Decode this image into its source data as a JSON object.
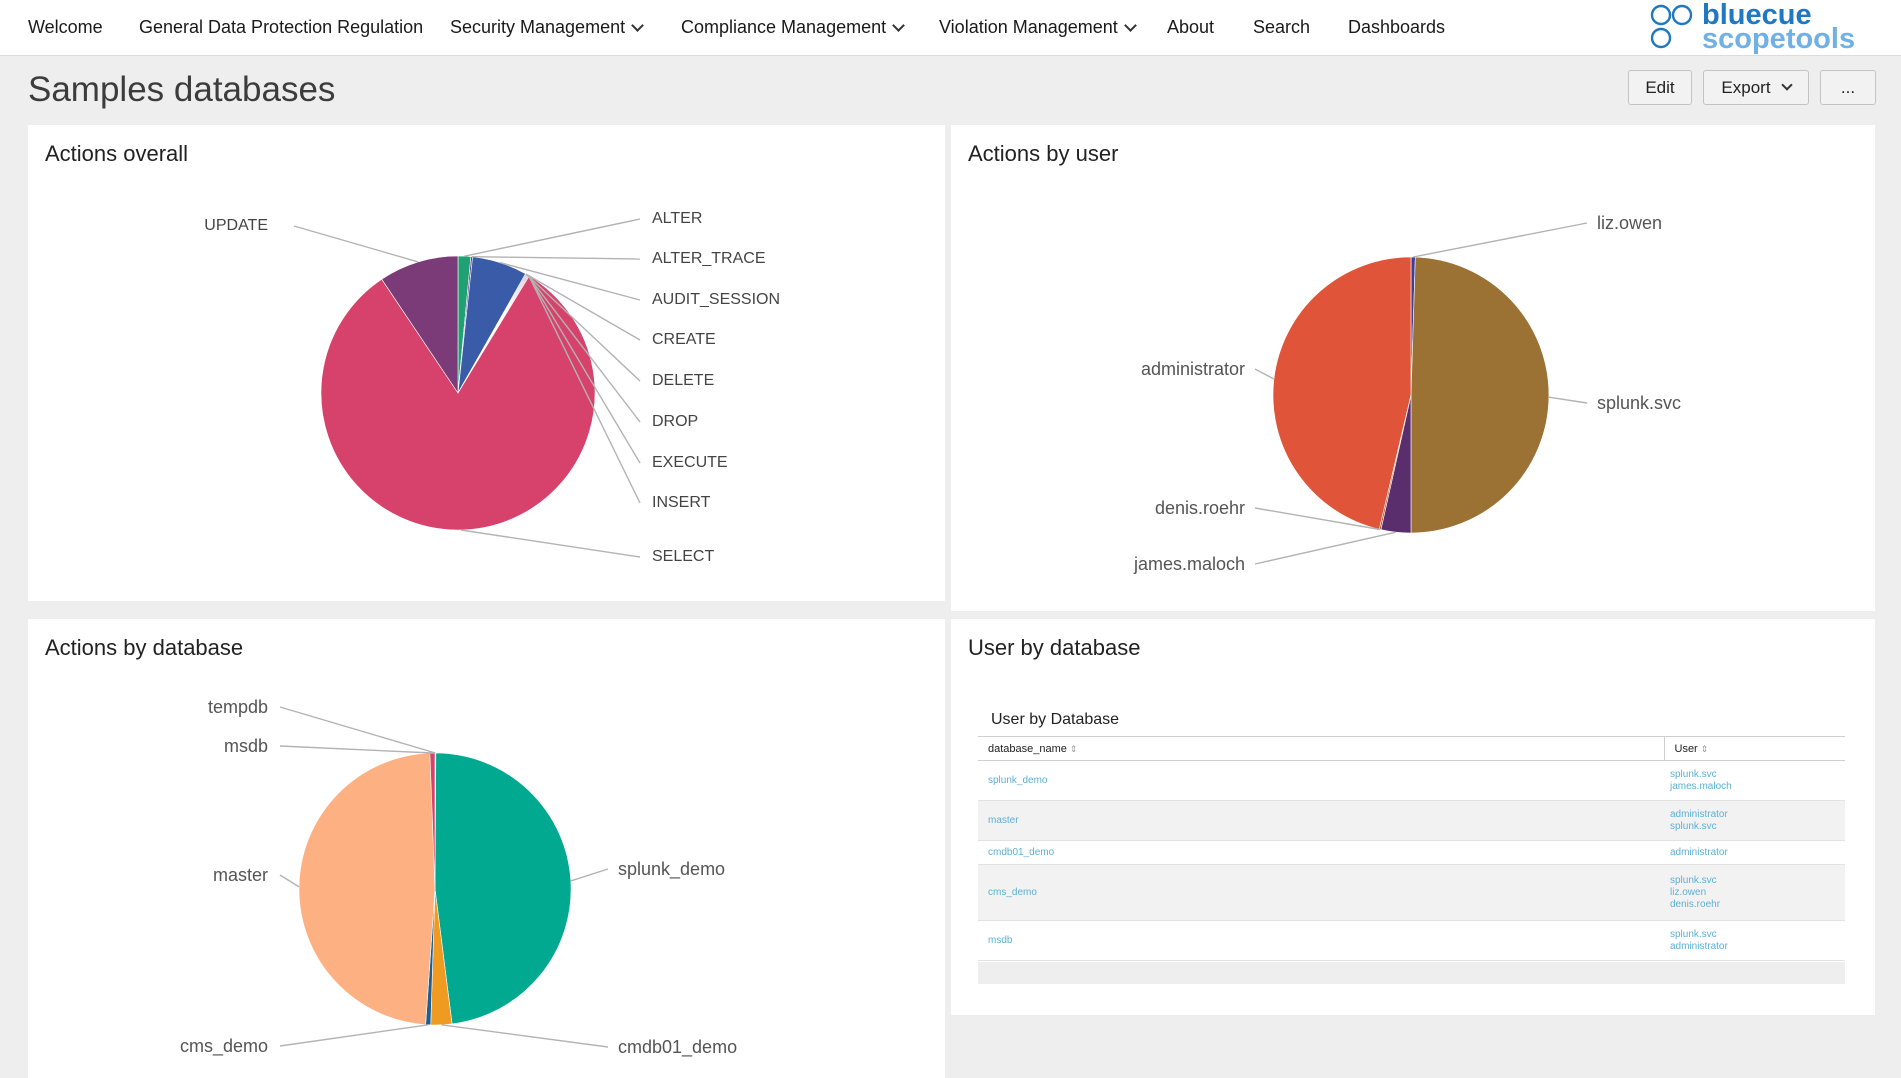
{
  "nav": {
    "items": [
      {
        "label": "Welcome",
        "dropdown": false
      },
      {
        "label": "General Data Protection Regulation",
        "dropdown": false
      },
      {
        "label": "Security Management",
        "dropdown": true
      },
      {
        "label": "Compliance Management",
        "dropdown": true
      },
      {
        "label": "Violation Management",
        "dropdown": true
      },
      {
        "label": "About",
        "dropdown": false
      },
      {
        "label": "Search",
        "dropdown": false
      },
      {
        "label": "Dashboards",
        "dropdown": false
      }
    ],
    "logo": {
      "line1": "bluecue",
      "line2": "scopetools",
      "color": "#1f78c1"
    }
  },
  "page": {
    "title": "Samples databases",
    "buttons": {
      "edit": "Edit",
      "export": "Export",
      "more": "..."
    }
  },
  "panels": {
    "actions_overall": {
      "title": "Actions overall"
    },
    "actions_by_user": {
      "title": "Actions by user"
    },
    "actions_by_database": {
      "title": "Actions by database"
    },
    "user_by_database": {
      "title": "User by database",
      "table_title": "User by Database",
      "columns": [
        "database_name",
        "User"
      ],
      "rows": [
        {
          "database_name": "splunk_demo",
          "users": [
            "splunk.svc",
            "james.maloch"
          ]
        },
        {
          "database_name": "master",
          "users": [
            "administrator",
            "splunk.svc"
          ]
        },
        {
          "database_name": "cmdb01_demo",
          "users": [
            "administrator"
          ]
        },
        {
          "database_name": "cms_demo",
          "users": [
            "splunk.svc",
            "liz.owen",
            "denis.roehr"
          ]
        },
        {
          "database_name": "msdb",
          "users": [
            "splunk.svc",
            "administrator"
          ]
        }
      ]
    }
  },
  "chart_data": [
    {
      "type": "pie",
      "title": "Actions overall",
      "categories": [
        "ALTER",
        "ALTER_TRACE",
        "AUDIT_SESSION",
        "CREATE",
        "DELETE",
        "DROP",
        "EXECUTE",
        "INSERT",
        "SELECT",
        "UPDATE"
      ],
      "values": [
        1.5,
        0.2,
        6.5,
        0.1,
        0.1,
        0.1,
        0.1,
        0.1,
        81.9,
        9.4
      ],
      "colors": [
        "#1fa174",
        "#5b3e8f",
        "#3a5ca8",
        "#5d3b6e",
        "#4c4c78",
        "#6b3a6a",
        "#7a3a63",
        "#8a3a5e",
        "#d6426b",
        "#7b3a78"
      ]
    },
    {
      "type": "pie",
      "title": "Actions by user",
      "categories": [
        "liz.owen",
        "splunk.svc",
        "james.maloch",
        "denis.roehr",
        "administrator"
      ],
      "values": [
        0.5,
        49.5,
        3.5,
        0.2,
        46.3
      ],
      "colors": [
        "#3b3f9a",
        "#9c7134",
        "#5a2d6c",
        "#c44a2e",
        "#e0553a"
      ]
    },
    {
      "type": "pie",
      "title": "Actions by database",
      "categories": [
        "tempdb",
        "splunk_demo",
        "cmdb01_demo",
        "cms_demo",
        "master",
        "msdb"
      ],
      "values": [
        0.1,
        47.9,
        2.5,
        0.6,
        48.3,
        0.6
      ],
      "colors": [
        "#c64575",
        "#00a990",
        "#ef9a20",
        "#1f5e8e",
        "#fdb183",
        "#d6426b"
      ]
    }
  ]
}
